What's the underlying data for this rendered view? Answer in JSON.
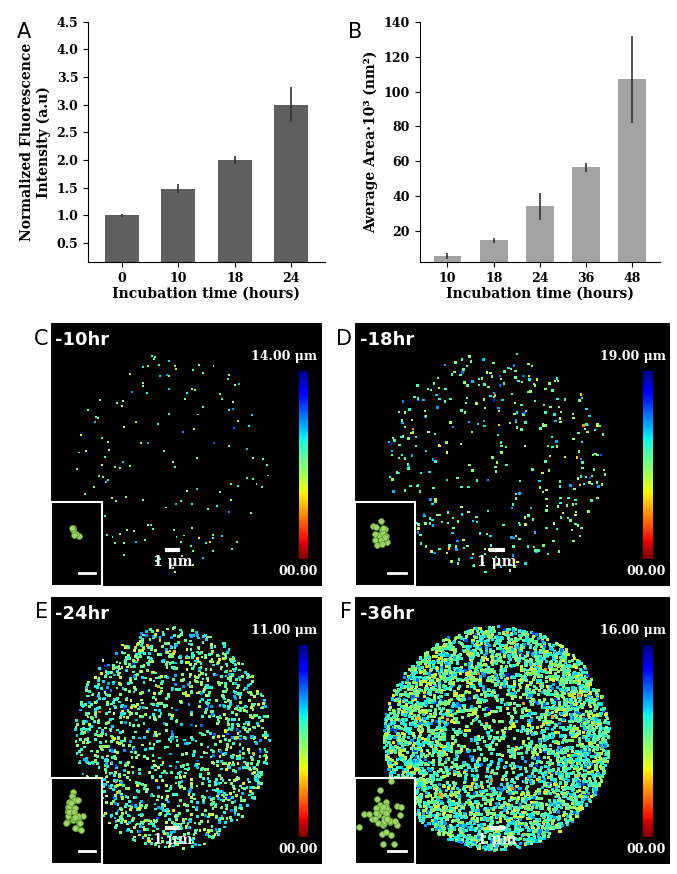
{
  "chart_data": [
    {
      "type": "bar",
      "title": "A",
      "categories": [
        "0",
        "10",
        "18",
        "24"
      ],
      "values": [
        1.0,
        1.48,
        2.0,
        3.0
      ],
      "errors": [
        0.03,
        0.08,
        0.07,
        0.32
      ],
      "color": "#5f5f5f",
      "x_label": "Incubation time (hours)",
      "y_label": "Normalized Fluorescence\nIntensity (a.u)",
      "ylim": [
        0.15,
        4.5
      ],
      "yticks": [
        0.5,
        {
          "value": 1,
          "label": "1.0"
        },
        1.5,
        {
          "value": 2,
          "label": "2.0"
        },
        2.5,
        {
          "value": 3,
          "label": "3.0"
        },
        3.5,
        {
          "value": 4,
          "label": "4.0"
        },
        4.5
      ]
    },
    {
      "type": "bar",
      "title": "B",
      "categories": [
        "10",
        "18",
        "24",
        "36",
        "48"
      ],
      "values": [
        5.5,
        14.5,
        34,
        56.5,
        107
      ],
      "errors": [
        1.5,
        1.5,
        7.5,
        2.5,
        25
      ],
      "color": "#a3a3a3",
      "x_label": "Incubation time (hours)",
      "y_label": "Average Area·10³ (nm²)",
      "ylim": [
        2,
        140
      ],
      "yticks": [
        20,
        40,
        60,
        80,
        100,
        120,
        140
      ]
    }
  ],
  "image_panels": [
    {
      "label": "C",
      "title": "-10hr",
      "colorbar_max": "14.00 μm",
      "colorbar_min": "00.00",
      "scale_bar": "1 μm"
    },
    {
      "label": "D",
      "title": "-18hr",
      "colorbar_max": "19.00 μm",
      "colorbar_min": "00.00",
      "scale_bar": "1 μm"
    },
    {
      "label": "E",
      "title": "-24hr",
      "colorbar_max": "11.00 μm",
      "colorbar_min": "00.00",
      "scale_bar": "1 μm"
    },
    {
      "label": "F",
      "title": "-36hr",
      "colorbar_max": "16.00 μm",
      "colorbar_min": "00.00",
      "scale_bar": "1 μm"
    }
  ]
}
